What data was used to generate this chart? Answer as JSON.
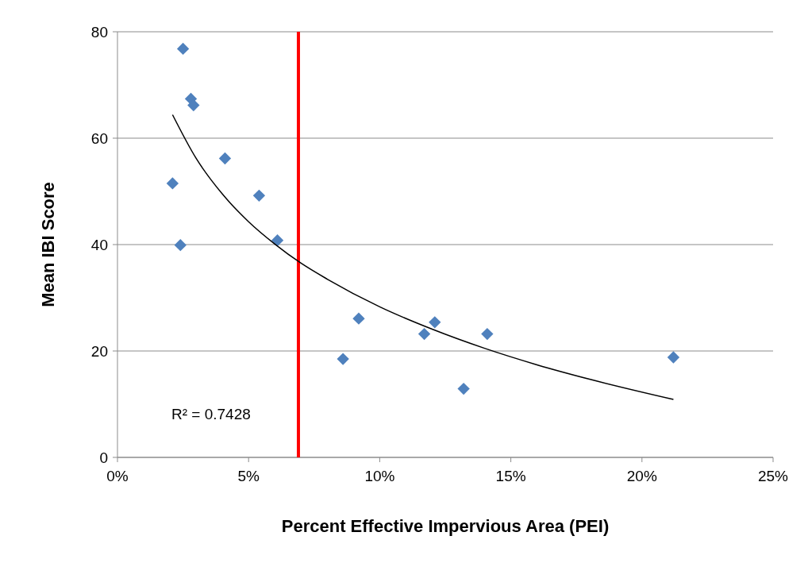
{
  "chart_data": {
    "type": "scatter",
    "xlabel": "Percent Effective Impervious Area (PEI)",
    "ylabel": "Mean IBI Score",
    "xlim": [
      0,
      25
    ],
    "ylim": [
      0,
      80
    ],
    "xticks": [
      {
        "value": 0,
        "label": "0%"
      },
      {
        "value": 5,
        "label": "5%"
      },
      {
        "value": 10,
        "label": "10%"
      },
      {
        "value": 15,
        "label": "15%"
      },
      {
        "value": 20,
        "label": "20%"
      },
      {
        "value": 25,
        "label": "25%"
      }
    ],
    "yticks": [
      0,
      20,
      40,
      60,
      80
    ],
    "grid": "y",
    "series": [
      {
        "color": "#4f81bd",
        "marker": "diamond",
        "x": [
          2.5,
          2.8,
          2.9,
          4.1,
          2.1,
          5.4,
          2.4,
          6.1,
          9.2,
          8.6,
          11.7,
          12.1,
          14.1,
          13.2,
          21.2
        ],
        "values": [
          76.8,
          67.4,
          66.2,
          56.2,
          51.5,
          49.2,
          39.9,
          40.8,
          26.1,
          18.5,
          23.2,
          25.4,
          23.2,
          12.9,
          18.8
        ]
      },
      {
        "type": "line",
        "color": "#000000",
        "marker": "none",
        "line_style": "solid",
        "x": [
          2.1,
          3,
          4,
          5,
          6,
          7,
          8,
          10,
          12,
          14,
          16,
          18,
          21.2
        ],
        "values": [
          64.4,
          56.2,
          49.5,
          44.3,
          40.1,
          36.5,
          33.5,
          28.3,
          24.1,
          20.5,
          17.4,
          14.7,
          10.9
        ]
      }
    ],
    "ref_lines": [
      {
        "axis": "x",
        "value": 6.9,
        "color": "#ff0000",
        "line_style": "solid"
      }
    ],
    "annotations": [
      "R² = 0.7428"
    ]
  }
}
